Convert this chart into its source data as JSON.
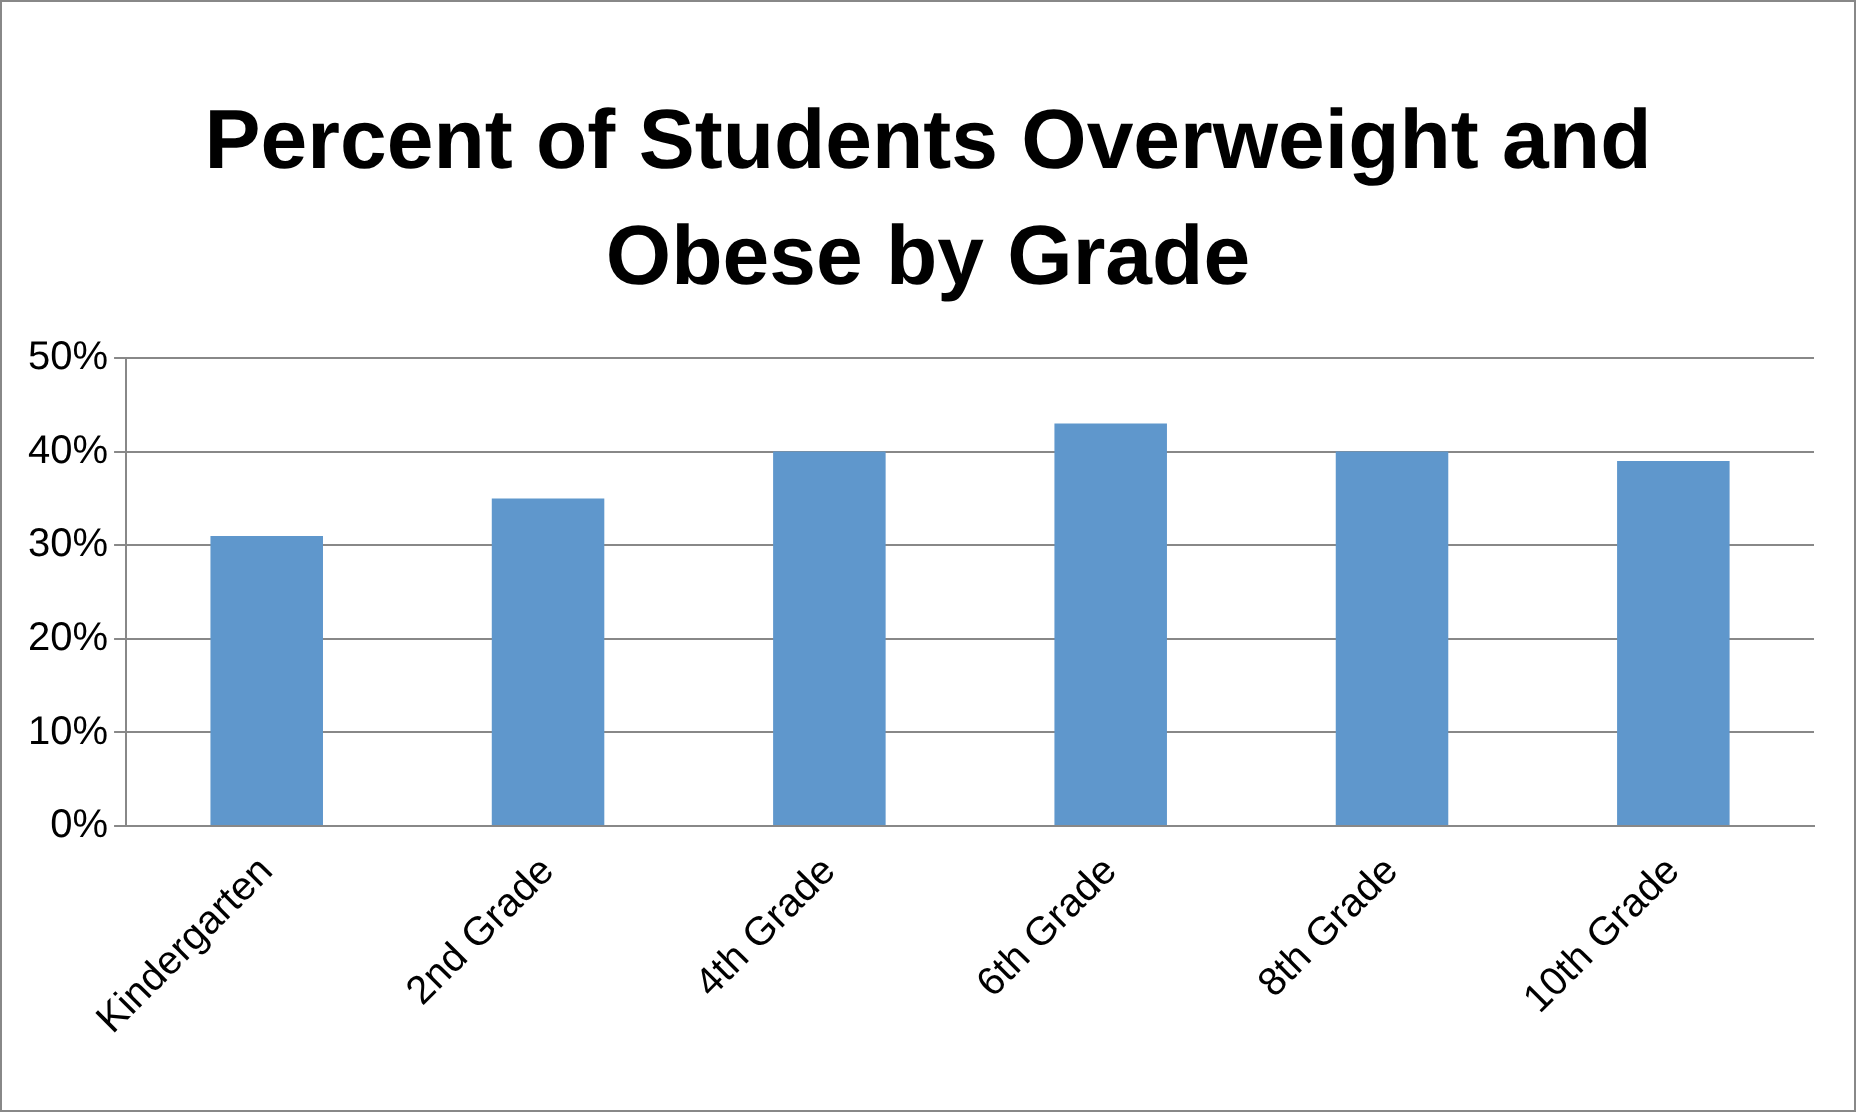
{
  "chart_data": {
    "type": "bar",
    "title": "Percent of Students Overweight and Obese by Grade",
    "categories": [
      "Kindergarten",
      "2nd Grade",
      "4th Grade",
      "6th Grade",
      "8th Grade",
      "10th Grade"
    ],
    "values": [
      31,
      35,
      40,
      43,
      40,
      39
    ],
    "color": "#5f97cc",
    "ylim": [
      0,
      50
    ],
    "yticks": [
      {
        "value": 0,
        "label": "0%"
      },
      {
        "value": 10,
        "label": "10%"
      },
      {
        "value": 20,
        "label": "20%"
      },
      {
        "value": 30,
        "label": "30%"
      },
      {
        "value": 40,
        "label": "40%"
      },
      {
        "value": 50,
        "label": "50%"
      }
    ],
    "grid": "y",
    "legend": false
  }
}
